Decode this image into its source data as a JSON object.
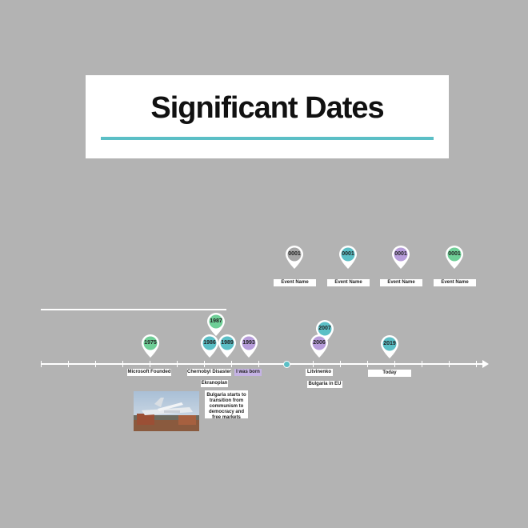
{
  "title": "Significant Dates",
  "colors": {
    "teal": "#5bbfc6",
    "green": "#6fcf97",
    "purple": "#b79ddb",
    "gray": "#a6a6a6"
  },
  "legend_events": [
    {
      "year": "0001",
      "name": "Event Name",
      "color": "gray"
    },
    {
      "year": "0001",
      "name": "Event Name",
      "color": "teal"
    },
    {
      "year": "0001",
      "name": "Event Name",
      "color": "purple"
    },
    {
      "year": "0001",
      "name": "Event Name",
      "color": "green"
    }
  ],
  "timeline": {
    "pins": [
      {
        "year": "1975",
        "color": "green"
      },
      {
        "year": "1986",
        "color": "teal"
      },
      {
        "year": "1987",
        "color": "green"
      },
      {
        "year": "1989",
        "color": "teal"
      },
      {
        "year": "1993",
        "color": "purple"
      },
      {
        "year": "2006",
        "color": "purple"
      },
      {
        "year": "2007",
        "color": "teal"
      },
      {
        "year": "2019",
        "color": "teal"
      }
    ],
    "labels": {
      "microsoft": "Microsoft Founded",
      "chernobyl": "Chernobyl Disaster",
      "ekranoplan": "Ekranoplan",
      "bulgaria_transition": "Bulgaria starts to transition from communism to democracy and free markets",
      "born": "I was born",
      "litvinenko": "Litvinenko",
      "bulgaria_eu": "Bulgaria in EU",
      "today": "Today"
    }
  }
}
